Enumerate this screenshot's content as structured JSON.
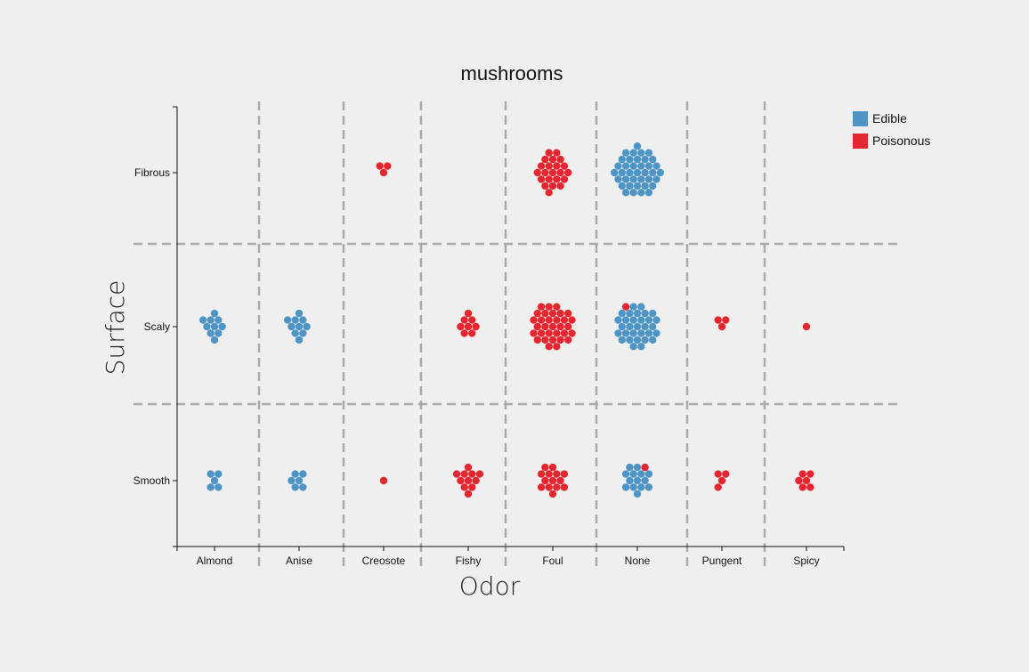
{
  "chart_data": {
    "type": "scatter",
    "title": "mushrooms",
    "xlabel": "Odor",
    "ylabel": "Surface",
    "x_categories": [
      "Almond",
      "Anise",
      "Creosote",
      "Fishy",
      "Foul",
      "None",
      "Pungent",
      "Spicy"
    ],
    "y_categories": [
      "Fibrous",
      "Scaly",
      "Smooth"
    ],
    "grid": true,
    "legend_position": "top-right",
    "series": [
      {
        "name": "Edible",
        "color": "#4e95c6",
        "cells": [
          {
            "x": "None",
            "y": "Fibrous",
            "count": 38
          },
          {
            "x": "Almond",
            "y": "Scaly",
            "count": 10
          },
          {
            "x": "Anise",
            "y": "Scaly",
            "count": 10
          },
          {
            "x": "None",
            "y": "Scaly",
            "count": 31
          },
          {
            "x": "Almond",
            "y": "Smooth",
            "count": 5
          },
          {
            "x": "Anise",
            "y": "Smooth",
            "count": 6
          },
          {
            "x": "None",
            "y": "Smooth",
            "count": 14
          }
        ]
      },
      {
        "name": "Poisonous",
        "color": "#e3262f",
        "cells": [
          {
            "x": "Creosote",
            "y": "Fibrous",
            "count": 3
          },
          {
            "x": "Foul",
            "y": "Fibrous",
            "count": 22
          },
          {
            "x": "Fishy",
            "y": "Scaly",
            "count": 8
          },
          {
            "x": "Foul",
            "y": "Scaly",
            "count": 32
          },
          {
            "x": "None",
            "y": "Scaly",
            "count": 1
          },
          {
            "x": "Pungent",
            "y": "Scaly",
            "count": 3
          },
          {
            "x": "Spicy",
            "y": "Scaly",
            "count": 1
          },
          {
            "x": "Creosote",
            "y": "Smooth",
            "count": 1
          },
          {
            "x": "Fishy",
            "y": "Smooth",
            "count": 11
          },
          {
            "x": "Foul",
            "y": "Smooth",
            "count": 14
          },
          {
            "x": "None",
            "y": "Smooth",
            "count": 1
          },
          {
            "x": "Pungent",
            "y": "Smooth",
            "count": 4
          },
          {
            "x": "Spicy",
            "y": "Smooth",
            "count": 6
          }
        ]
      }
    ]
  }
}
